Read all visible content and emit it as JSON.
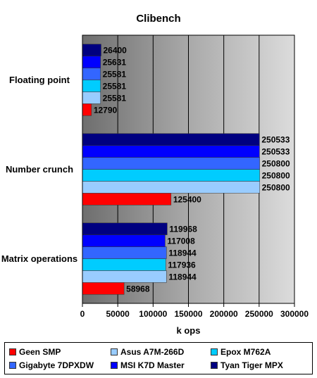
{
  "chart_data": {
    "type": "bar",
    "orientation": "horizontal",
    "title": "Clibench",
    "xlabel": "k ops",
    "ylabel": "",
    "xlim": [
      0,
      300000
    ],
    "xticks": [
      0,
      50000,
      100000,
      150000,
      200000,
      250000,
      300000
    ],
    "grid": true,
    "legend_position": "bottom",
    "categories": [
      "Floating point",
      "Number crunch",
      "Matrix operations"
    ],
    "series": [
      {
        "name": "Geen SMP",
        "color": "#ff0000",
        "values": [
          12790,
          125400,
          58968
        ]
      },
      {
        "name": "Asus A7M-266D",
        "color": "#99ccff",
        "values": [
          25581,
          250800,
          118944
        ]
      },
      {
        "name": "Epox M762A",
        "color": "#00ccff",
        "values": [
          25581,
          250800,
          117936
        ]
      },
      {
        "name": "Gigabyte 7DPXDW",
        "color": "#3366ff",
        "values": [
          25581,
          250800,
          118944
        ]
      },
      {
        "name": "MSI K7D Master",
        "color": "#0000ff",
        "values": [
          25631,
          250533,
          117008
        ]
      },
      {
        "name": "Tyan Tiger MPX",
        "color": "#000080",
        "values": [
          26400,
          250533,
          119968
        ]
      }
    ]
  }
}
